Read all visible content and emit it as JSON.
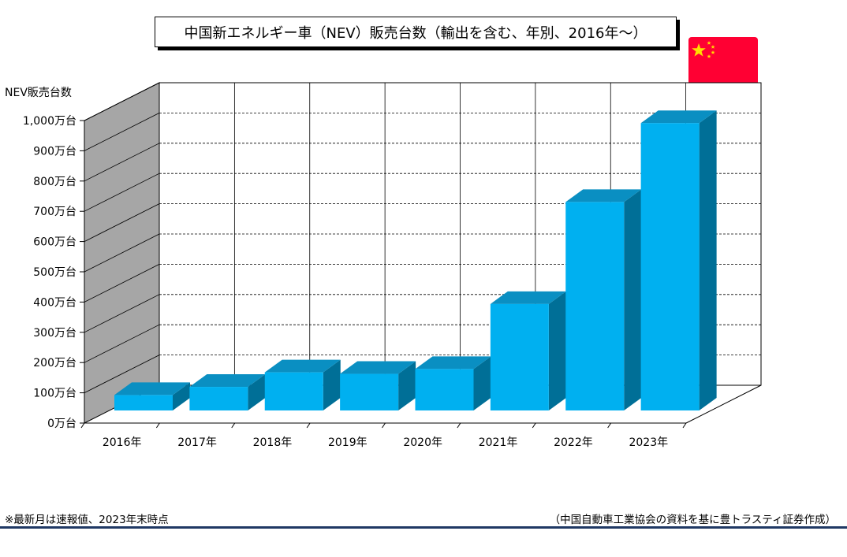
{
  "title": "中国新エネルギー車（NEV）販売台数（輸出を含む、年別、2016年～）",
  "footnote_left": "※最新月は速報値、2023年末時点",
  "footnote_right": "（中国自動車工業協会の資料を基に豊トラスティ証券作成）",
  "flag_icon": "china-flag-icon",
  "colors": {
    "bar_front": "#00b0f0",
    "bar_top": "#0a8fc2",
    "bar_side": "#006f97",
    "wall": "#a6a6a6",
    "rule": "#1f3864",
    "flag_red": "#ff0033",
    "flag_star": "#ffde00"
  },
  "chart_data": {
    "type": "bar",
    "ylabel": "NEV販売台数",
    "ylim": [
      0,
      1000
    ],
    "y_unit": "万台",
    "yticks": [
      "0万台",
      "100万台",
      "200万台",
      "300万台",
      "400万台",
      "500万台",
      "600万台",
      "700万台",
      "800万台",
      "900万台",
      "1,000万台"
    ],
    "categories": [
      "2016年",
      "2017年",
      "2018年",
      "2019年",
      "2020年",
      "2021年",
      "2022年",
      "2023年"
    ],
    "values": [
      51,
      78,
      126,
      121,
      137,
      352,
      689,
      950
    ],
    "grid": true,
    "three_d": true
  }
}
